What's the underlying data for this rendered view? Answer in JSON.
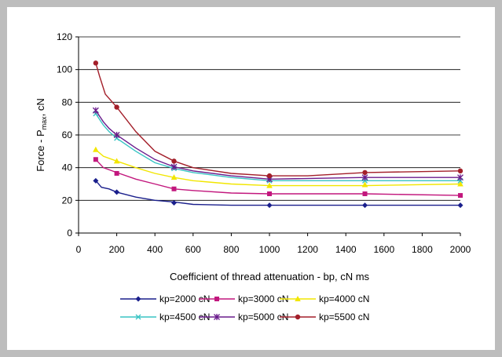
{
  "chart_data": {
    "type": "line",
    "title": "",
    "xlabel": "Coefficient of thread attenuation - bp, cN ms",
    "ylabel": {
      "main": "Force - P",
      "sub": "max",
      "rest": ", cN"
    },
    "xlim": [
      0,
      2000
    ],
    "ylim": [
      0,
      120
    ],
    "x_ticks": [
      0,
      200,
      400,
      600,
      800,
      1000,
      1200,
      1400,
      1600,
      1800,
      2000
    ],
    "y_ticks": [
      0,
      20,
      40,
      60,
      80,
      100,
      120
    ],
    "grid": "horizontal",
    "legend_position": "bottom",
    "series": [
      {
        "name": "kp=2000 cN",
        "color": "#1a1f8c",
        "marker": "diamond",
        "line": [
          [
            90,
            32
          ],
          [
            120,
            28
          ],
          [
            160,
            27
          ],
          [
            200,
            25
          ],
          [
            300,
            22
          ],
          [
            400,
            20
          ],
          [
            500,
            19
          ],
          [
            600,
            17.5
          ],
          [
            800,
            17
          ],
          [
            1000,
            17
          ],
          [
            1500,
            17
          ],
          [
            2000,
            17
          ]
        ],
        "markers": [
          [
            90,
            32
          ],
          [
            200,
            25
          ],
          [
            500,
            18.5
          ],
          [
            1000,
            17
          ],
          [
            1500,
            17
          ],
          [
            2000,
            17
          ]
        ]
      },
      {
        "name": "kp=3000 cN",
        "color": "#c2177d",
        "marker": "square",
        "line": [
          [
            90,
            45
          ],
          [
            130,
            40
          ],
          [
            200,
            37
          ],
          [
            300,
            33
          ],
          [
            400,
            30
          ],
          [
            500,
            27
          ],
          [
            600,
            26
          ],
          [
            800,
            24.5
          ],
          [
            1000,
            24
          ],
          [
            1500,
            24
          ],
          [
            2000,
            23
          ]
        ],
        "markers": [
          [
            90,
            45
          ],
          [
            200,
            36.5
          ],
          [
            500,
            27
          ],
          [
            1000,
            24
          ],
          [
            1500,
            24
          ],
          [
            2000,
            23
          ]
        ]
      },
      {
        "name": "kp=4000 cN",
        "color": "#f2e600",
        "marker": "triangle",
        "line": [
          [
            90,
            51
          ],
          [
            130,
            47
          ],
          [
            200,
            44
          ],
          [
            300,
            40
          ],
          [
            400,
            36.5
          ],
          [
            500,
            34
          ],
          [
            600,
            32
          ],
          [
            800,
            30
          ],
          [
            1000,
            29
          ],
          [
            1500,
            29
          ],
          [
            2000,
            30
          ]
        ],
        "markers": [
          [
            90,
            51
          ],
          [
            200,
            44
          ],
          [
            500,
            34
          ],
          [
            1000,
            29
          ],
          [
            1500,
            29.5
          ],
          [
            2000,
            30
          ]
        ]
      },
      {
        "name": "kp=4500 cN",
        "color": "#39c4c4",
        "marker": "x",
        "line": [
          [
            90,
            73
          ],
          [
            130,
            66
          ],
          [
            160,
            62
          ],
          [
            200,
            58
          ],
          [
            300,
            50
          ],
          [
            400,
            43
          ],
          [
            500,
            39.5
          ],
          [
            600,
            37
          ],
          [
            800,
            34
          ],
          [
            1000,
            32
          ],
          [
            1500,
            32
          ],
          [
            2000,
            32
          ]
        ],
        "markers": [
          [
            90,
            73
          ],
          [
            200,
            58
          ],
          [
            500,
            39.5
          ],
          [
            1000,
            32
          ],
          [
            1500,
            32
          ],
          [
            2000,
            32
          ]
        ]
      },
      {
        "name": "kp=5000 cN",
        "color": "#6a1b8c",
        "marker": "star",
        "line": [
          [
            90,
            75
          ],
          [
            130,
            68
          ],
          [
            160,
            64
          ],
          [
            200,
            60
          ],
          [
            300,
            52
          ],
          [
            400,
            45
          ],
          [
            500,
            40.5
          ],
          [
            600,
            38
          ],
          [
            800,
            35
          ],
          [
            1000,
            33
          ],
          [
            1500,
            34
          ],
          [
            2000,
            34
          ]
        ],
        "markers": [
          [
            90,
            75
          ],
          [
            200,
            60
          ],
          [
            500,
            40.5
          ],
          [
            1000,
            33
          ],
          [
            1500,
            34
          ],
          [
            2000,
            34
          ]
        ]
      },
      {
        "name": "kp=5500 cN",
        "color": "#a31f2a",
        "marker": "circle",
        "line": [
          [
            90,
            104
          ],
          [
            110,
            96
          ],
          [
            140,
            85
          ],
          [
            200,
            77
          ],
          [
            300,
            62
          ],
          [
            400,
            50
          ],
          [
            500,
            44
          ],
          [
            600,
            40
          ],
          [
            800,
            36.5
          ],
          [
            1000,
            35
          ],
          [
            1200,
            35
          ],
          [
            1500,
            37
          ],
          [
            2000,
            38
          ]
        ],
        "markers": [
          [
            90,
            104
          ],
          [
            200,
            77
          ],
          [
            500,
            44
          ],
          [
            1000,
            35
          ],
          [
            1500,
            37
          ],
          [
            2000,
            38
          ]
        ]
      }
    ]
  }
}
